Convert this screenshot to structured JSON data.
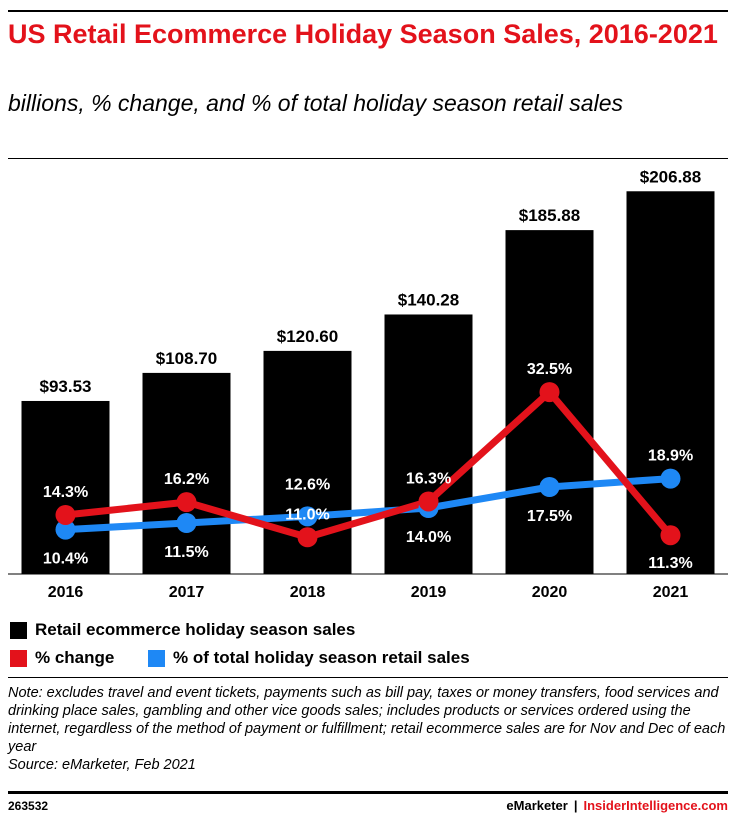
{
  "header": {
    "title": "US Retail Ecommerce Holiday Season Sales, 2016-2021",
    "subtitle": "billions, % change, and % of total holiday season retail sales"
  },
  "colors": {
    "accent": "#e3121b",
    "bar": "#000000",
    "pct_change": "#e3121b",
    "pct_total": "#1e88f5"
  },
  "chart_data": {
    "type": "bar",
    "categories": [
      "2016",
      "2017",
      "2018",
      "2019",
      "2020",
      "2021"
    ],
    "series": [
      {
        "name": "Retail ecommerce holiday season sales",
        "type": "bar",
        "values": [
          93.53,
          108.7,
          120.6,
          140.28,
          185.88,
          206.88
        ],
        "labels": [
          "$93.53",
          "$108.70",
          "$120.60",
          "$140.28",
          "$185.88",
          "$206.88"
        ]
      },
      {
        "name": "% change",
        "type": "line",
        "values": [
          14.3,
          16.2,
          11.0,
          16.3,
          32.5,
          11.3
        ],
        "labels": [
          "14.3%",
          "16.2%",
          "11.0%",
          "16.3%",
          "32.5%",
          "11.3%"
        ]
      },
      {
        "name": "% of total holiday season retail sales",
        "type": "line",
        "values": [
          10.4,
          11.5,
          12.6,
          14.0,
          17.5,
          18.9
        ],
        "labels": [
          "10.4%",
          "11.5%",
          "12.6%",
          "14.0%",
          "17.5%",
          "18.9%"
        ]
      }
    ],
    "bar_ylim": [
      0,
      220
    ],
    "line_ylim": [
      -20,
      60
    ],
    "legend_position": "bottom"
  },
  "legend": {
    "items": [
      {
        "label": "Retail ecommerce holiday season sales"
      },
      {
        "label": "% change"
      },
      {
        "label": "% of total holiday season retail sales"
      }
    ]
  },
  "note": {
    "text": "Note: excludes travel and event tickets, payments such as bill pay, taxes or money transfers, food services and drinking place sales, gambling and other vice goods sales; includes products or services ordered using the internet, regardless of the method of payment or fulfillment; retail ecommerce sales are for Nov and Dec of each year",
    "source": "Source: eMarketer, Feb 2021"
  },
  "footer": {
    "id": "263532",
    "brand_left": "eMarketer",
    "separator": "|",
    "brand_right": "InsiderIntelligence.com"
  }
}
